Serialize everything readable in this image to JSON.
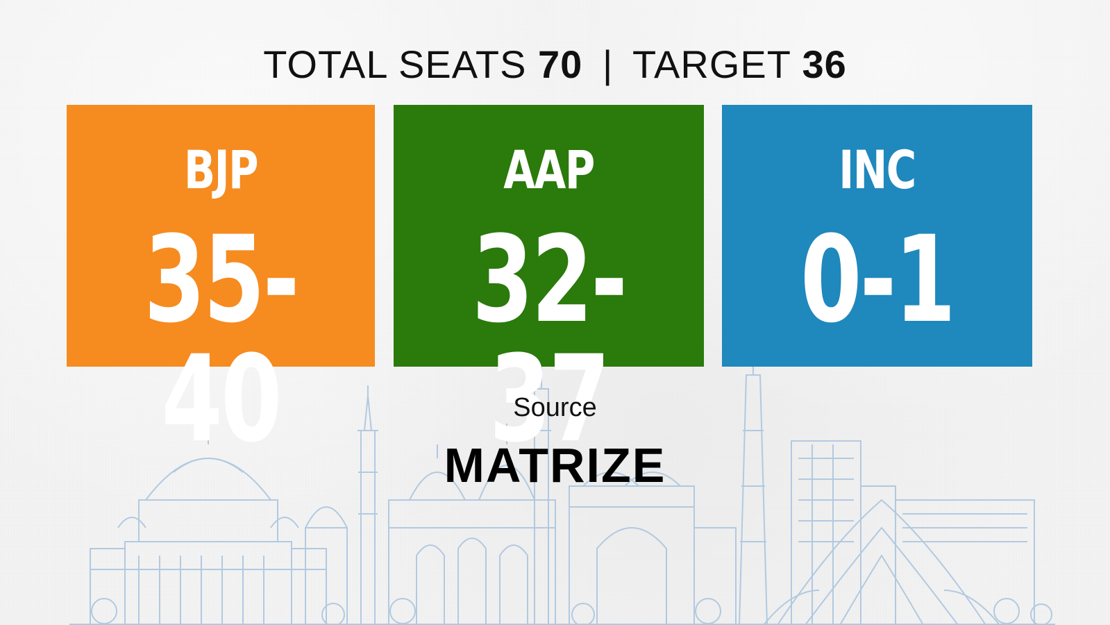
{
  "header": {
    "total_label": "TOTAL SEATS",
    "total_value": "70",
    "separator": "|",
    "target_label": "TARGET",
    "target_value": "36"
  },
  "parties": [
    {
      "name": "BJP",
      "seats": "35-40",
      "color": "#f68b20"
    },
    {
      "name": "AAP",
      "seats": "32-37",
      "color": "#2a7a0c"
    },
    {
      "name": "INC",
      "seats": "0-1",
      "color": "#1f88bd"
    }
  ],
  "source": {
    "label": "Source",
    "name": "MATRIZE"
  },
  "colors": {
    "background": "#f3f3f3",
    "skyline": "#9fbfdc",
    "text": "#111111"
  }
}
